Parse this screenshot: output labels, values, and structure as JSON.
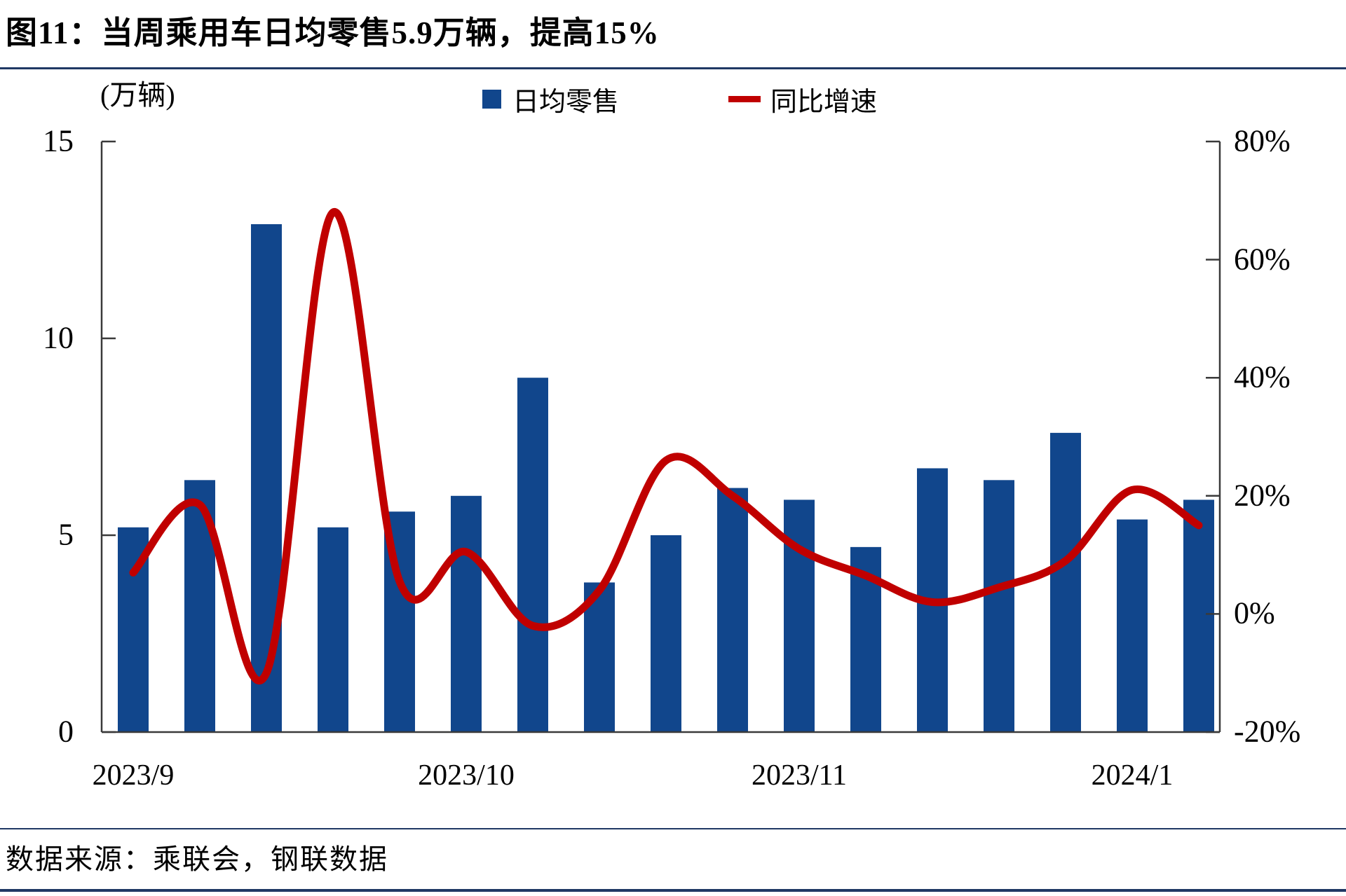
{
  "page": {
    "title": "图11：当周乘用车日均零售5.9万辆，提高15%",
    "footer": "数据来源：乘联会，钢联数据"
  },
  "colors": {
    "bar": "#11468C",
    "line": "#C00000",
    "rule": "#1F3864",
    "axis": "#3A3A3A",
    "text": "#000000"
  },
  "legend": {
    "bar_label": "日均零售",
    "line_label": "同比增速"
  },
  "chart_data": {
    "type": "bar+line",
    "title": "图11：当周乘用车日均零售5.9万辆，提高15%",
    "ylabel_left": "(万辆)",
    "ylabel_right": "%",
    "grid": false,
    "legend_position": "top",
    "x_description": "weekly observations from 2023/9 to 2024/1",
    "series": [
      {
        "name": "日均零售",
        "type": "bar",
        "axis": "left",
        "unit": "万辆",
        "values": [
          5.2,
          6.4,
          12.9,
          5.2,
          5.6,
          6.0,
          9.0,
          3.8,
          5.0,
          6.2,
          5.9,
          4.7,
          6.7,
          6.4,
          7.6,
          5.4,
          5.9
        ]
      },
      {
        "name": "同比增速",
        "type": "line",
        "axis": "right",
        "unit": "%",
        "values": [
          7,
          18.5,
          -10,
          68,
          5.5,
          10.5,
          -2,
          4,
          26,
          20,
          11,
          6.5,
          2,
          4.5,
          9,
          21,
          15
        ]
      }
    ],
    "left_axis": {
      "range": [
        0,
        15
      ],
      "ticks": [
        0,
        5,
        10,
        15
      ],
      "labels": [
        "0",
        "5",
        "10",
        "15"
      ]
    },
    "right_axis": {
      "range": [
        -20,
        80
      ],
      "ticks": [
        -20,
        0,
        20,
        40,
        60,
        80
      ],
      "labels": [
        "-20%",
        "0%",
        "20%",
        "40%",
        "60%",
        "80%"
      ]
    },
    "x_ticks": [
      {
        "label": "2023/9",
        "index": 0
      },
      {
        "label": "2023/10",
        "index": 5
      },
      {
        "label": "2023/11",
        "index": 10
      },
      {
        "label": "2024/1",
        "index": 15
      }
    ]
  }
}
